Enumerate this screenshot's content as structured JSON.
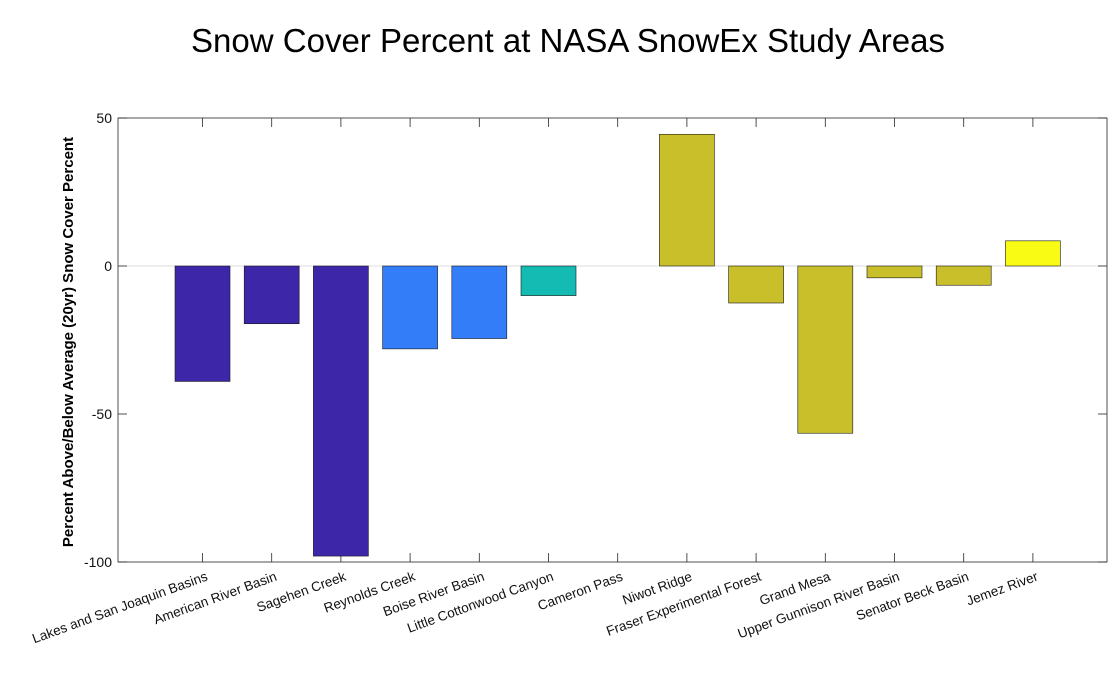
{
  "chart_data": {
    "type": "bar",
    "title": "Snow Cover Percent at NASA SnowEx Study Areas",
    "xlabel": "",
    "ylabel": "Percent Above/Below Average (20yr) Snow Cover Percent",
    "ylim": [
      -100,
      50
    ],
    "yticks": [
      "50",
      "0",
      "-50",
      "-100"
    ],
    "ytick_values": [
      50,
      0,
      -50,
      -100
    ],
    "grid": false,
    "categories": [
      "Lakes and San Joaquin Basins",
      "American River Basin",
      "Sagehen Creek",
      "Reynolds Creek",
      "Boise River Basin",
      "Little Cottonwood Canyon",
      "Cameron Pass",
      "Niwot Ridge",
      "Fraser Experimental Forest",
      "Grand Mesa",
      "Upper Gunnison River Basin",
      "Senator Beck Basin",
      "Jemez River"
    ],
    "values": [
      -39,
      -19.5,
      -98,
      -28,
      -24.5,
      -10,
      0,
      44.5,
      -12.5,
      -56.5,
      -4,
      -6.5,
      8.5
    ],
    "colors": [
      "#3d26a8",
      "#3d26a8",
      "#3d26a8",
      "#347df9",
      "#347df9",
      "#14bbb3",
      "#14bbb3",
      "#c9bf2a",
      "#c9bf2a",
      "#c9bf2a",
      "#c9bf2a",
      "#c9bf2a",
      "#f9fb14"
    ]
  }
}
